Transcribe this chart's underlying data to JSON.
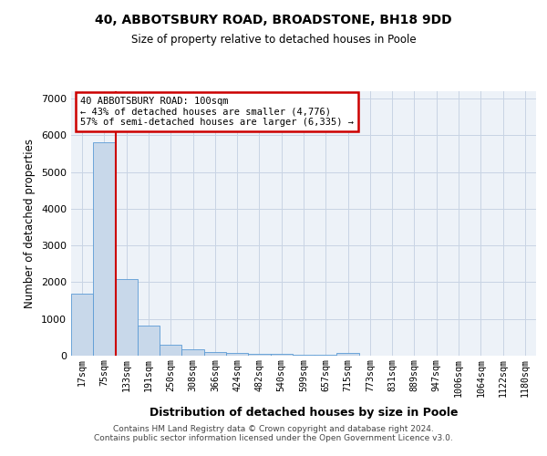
{
  "title_line1": "40, ABBOTSBURY ROAD, BROADSTONE, BH18 9DD",
  "title_line2": "Size of property relative to detached houses in Poole",
  "xlabel": "Distribution of detached houses by size in Poole",
  "ylabel": "Number of detached properties",
  "categories": [
    "17sqm",
    "75sqm",
    "133sqm",
    "191sqm",
    "250sqm",
    "308sqm",
    "366sqm",
    "424sqm",
    "482sqm",
    "540sqm",
    "599sqm",
    "657sqm",
    "715sqm",
    "773sqm",
    "831sqm",
    "889sqm",
    "947sqm",
    "1006sqm",
    "1064sqm",
    "1122sqm",
    "1180sqm"
  ],
  "values": [
    1700,
    5820,
    2080,
    810,
    310,
    185,
    105,
    70,
    55,
    42,
    32,
    25,
    65,
    0,
    0,
    0,
    0,
    0,
    0,
    0,
    0
  ],
  "bar_color": "#c8d8ea",
  "bar_edge_color": "#5b9bd5",
  "red_line_x": 1.5,
  "annotation_title": "40 ABBOTSBURY ROAD: 100sqm",
  "annotation_line2": "← 43% of detached houses are smaller (4,776)",
  "annotation_line3": "57% of semi-detached houses are larger (6,335) →",
  "annotation_box_color": "#ffffff",
  "annotation_box_edge": "#cc0000",
  "red_line_color": "#cc0000",
  "ylim": [
    0,
    7200
  ],
  "yticks": [
    0,
    1000,
    2000,
    3000,
    4000,
    5000,
    6000,
    7000
  ],
  "grid_color": "#c8d4e4",
  "background_color": "#edf2f8",
  "footer_line1": "Contains HM Land Registry data © Crown copyright and database right 2024.",
  "footer_line2": "Contains public sector information licensed under the Open Government Licence v3.0."
}
